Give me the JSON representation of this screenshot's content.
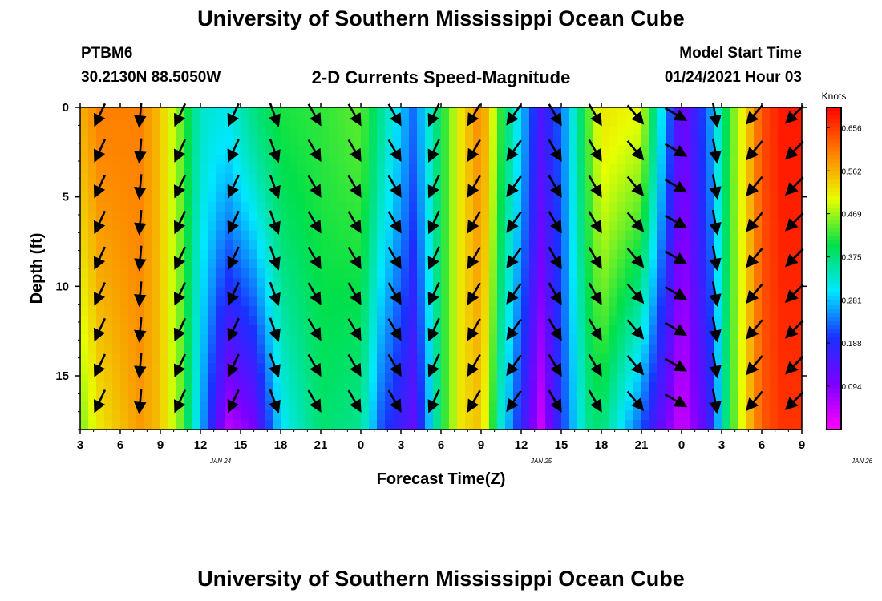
{
  "page": {
    "title_top": "University of Southern Mississippi Ocean Cube",
    "title_bottom": "University of Southern Mississippi Ocean Cube",
    "station": "PTBM6",
    "coords": "30.2130N 88.5050W",
    "subtitle": "2-D Currents Speed-Magnitude",
    "model_label": "Model Start Time",
    "model_time": "01/24/2021 Hour 03"
  },
  "chart_data": {
    "type": "heatmap",
    "title": "2-D Currents Speed-Magnitude",
    "xlabel": "Forecast Time(Z)",
    "ylabel": "Depth (ft)",
    "x_ticks": [
      "3",
      "6",
      "9",
      "12",
      "15",
      "18",
      "21",
      "0",
      "3",
      "6",
      "9",
      "12",
      "15",
      "18",
      "21",
      "0",
      "3",
      "6",
      "9"
    ],
    "x_tick_hours": [
      0,
      3,
      6,
      9,
      12,
      15,
      18,
      21,
      24,
      27,
      30,
      33,
      36,
      39,
      42,
      45,
      48,
      51,
      54
    ],
    "x_range_hours": [
      0,
      54
    ],
    "date_labels": [
      {
        "label": "JAN 24",
        "hour": 10.5
      },
      {
        "label": "JAN 25",
        "hour": 34.5
      },
      {
        "label": "JAN 26",
        "hour": 58.5
      }
    ],
    "y_ticks": [
      0,
      5,
      10,
      15
    ],
    "y_range": [
      0,
      18
    ],
    "y_inverted": true,
    "colorbar": {
      "title": "Knots",
      "ticks": [
        "0.656",
        "0.562",
        "0.469",
        "0.375",
        "0.281",
        "0.188",
        "0.094"
      ],
      "tick_values": [
        0.656,
        0.562,
        0.469,
        0.375,
        0.281,
        0.188,
        0.094
      ],
      "range": [
        0.0,
        0.7
      ],
      "colors": [
        "#ff00ff",
        "#7a00ff",
        "#1a30ff",
        "#00e8ff",
        "#00e04a",
        "#e8ff00",
        "#ff8000",
        "#ff0000"
      ]
    },
    "speed_profile": {
      "hours": [
        0,
        1.5,
        4.5,
        6,
        7.5,
        9,
        11,
        13,
        15,
        18,
        21,
        22.5,
        25,
        27,
        28.5,
        30,
        31.5,
        34.5,
        36,
        38,
        39,
        42,
        43.5,
        45,
        47,
        48.5,
        50,
        51,
        52.5,
        54
      ],
      "surface": [
        0.56,
        0.6,
        0.6,
        0.55,
        0.45,
        0.33,
        0.31,
        0.37,
        0.41,
        0.42,
        0.44,
        0.36,
        0.23,
        0.4,
        0.52,
        0.6,
        0.42,
        0.15,
        0.23,
        0.43,
        0.52,
        0.5,
        0.3,
        0.1,
        0.24,
        0.42,
        0.55,
        0.64,
        0.68,
        0.68
      ],
      "bottom": [
        0.45,
        0.52,
        0.58,
        0.55,
        0.45,
        0.28,
        0.05,
        0.1,
        0.3,
        0.38,
        0.36,
        0.22,
        0.12,
        0.4,
        0.52,
        0.55,
        0.32,
        0.04,
        0.2,
        0.36,
        0.38,
        0.22,
        0.12,
        0.03,
        0.15,
        0.4,
        0.55,
        0.63,
        0.66,
        0.66
      ]
    },
    "vector_hours": [
      1.5,
      4.5,
      7.5,
      11.5,
      14.5,
      17.5,
      20.5,
      23.5,
      26.5,
      29.5,
      32.5,
      35.5,
      38.5,
      41.5,
      44.5,
      47.5,
      50.5,
      53.5
    ],
    "vector_directions_deg": [
      245,
      265,
      245,
      245,
      290,
      300,
      300,
      300,
      245,
      240,
      235,
      300,
      300,
      310,
      330,
      280,
      230,
      225
    ],
    "vector_depths_ft": [
      0,
      2,
      4,
      6,
      8,
      10,
      12,
      14,
      16
    ]
  }
}
